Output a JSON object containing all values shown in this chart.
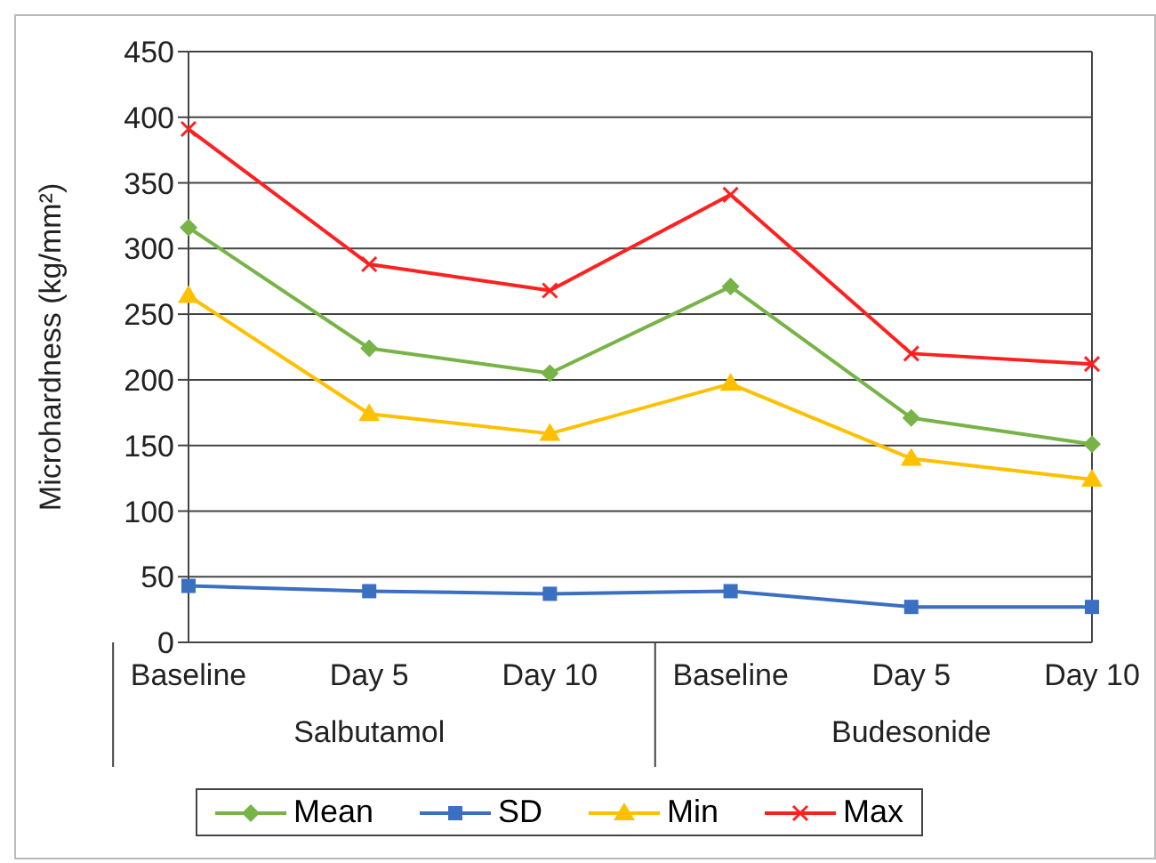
{
  "chart_data": {
    "type": "line",
    "ylabel": "Microhardness (kg/mm²)",
    "categories": [
      "Baseline",
      "Day 5",
      "Day 10",
      "Baseline",
      "Day 5",
      "Day 10"
    ],
    "annotations": [
      "Salbutamol",
      "Budesonide"
    ],
    "series": [
      {
        "name": "Mean",
        "color": "#77b347",
        "marker": "diamond",
        "values": [
          316,
          224,
          205,
          271,
          171,
          151
        ]
      },
      {
        "name": "SD",
        "color": "#3a6fc2",
        "marker": "square",
        "values": [
          43,
          39,
          37,
          39,
          27,
          27
        ]
      },
      {
        "name": "Min",
        "color": "#ffc000",
        "marker": "triangle",
        "values": [
          264,
          174,
          159,
          197,
          140,
          124
        ]
      },
      {
        "name": "Max",
        "color": "#ff2020",
        "marker": "cross",
        "values": [
          391,
          288,
          268,
          341,
          220,
          212
        ]
      }
    ],
    "ylim": [
      0,
      450
    ],
    "yticks": [
      0,
      50,
      100,
      150,
      200,
      250,
      300,
      350,
      400,
      450
    ],
    "grid": "y",
    "legend": "bottom",
    "line_style": "solid"
  }
}
